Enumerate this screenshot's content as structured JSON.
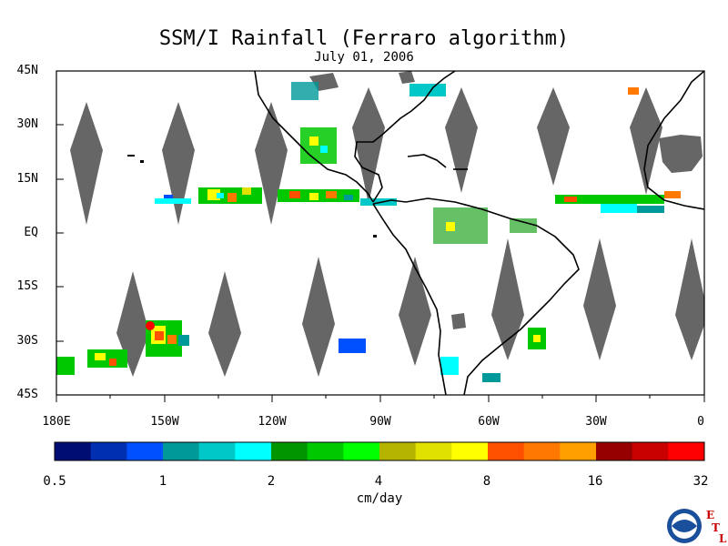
{
  "title": "SSM/I Rainfall (Ferraro algorithm)",
  "date": "July 01, 2006",
  "lat_labels": [
    "45N",
    "30N",
    "15N",
    "EQ",
    "15S",
    "30S",
    "45S"
  ],
  "lon_labels": [
    "180E",
    "150W",
    "120W",
    "90W",
    "60W",
    "30W",
    "0"
  ],
  "colorbar": {
    "colors": [
      "#000e73",
      "#0030b0",
      "#0050ff",
      "#009999",
      "#00c8c8",
      "#00ffff",
      "#009600",
      "#00c800",
      "#00ff00",
      "#b4b400",
      "#e1e100",
      "#ffff00",
      "#ff5000",
      "#ff7800",
      "#ffa000",
      "#960000",
      "#c80000",
      "#ff0000"
    ],
    "tick_labels": [
      "0.5",
      "1",
      "2",
      "4",
      "8",
      "16",
      "32"
    ],
    "unit": "cm/day"
  },
  "colors": {
    "swath_gap": "#666666",
    "coastline": "#000000",
    "land_rain": "#666666"
  },
  "logos": {
    "noaa": "NOAA",
    "etl": [
      "E",
      "T",
      "L"
    ]
  }
}
